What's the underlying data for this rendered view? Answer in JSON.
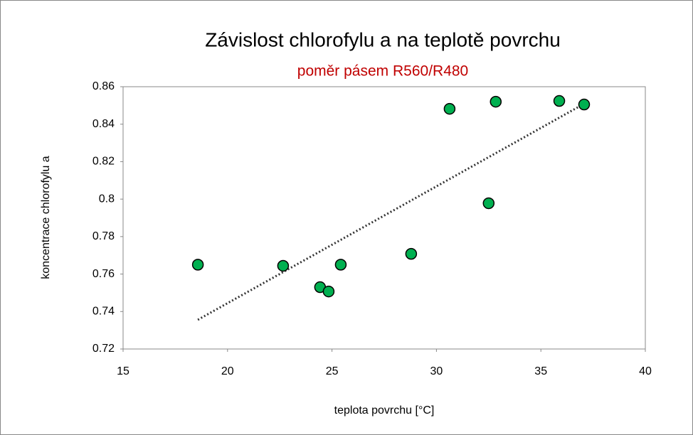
{
  "chart_data": {
    "type": "scatter",
    "title": "Závislost chlorofylu a na teplotě povrchu",
    "subtitle": "poměr pásem R560/R480",
    "subtitle_color": "#c00000",
    "x_label": "teplota povrchu [°C]",
    "y_label": "koncentrace chlorofylu a",
    "x": [
      18.58,
      22.66,
      24.43,
      24.84,
      25.42,
      28.79,
      30.63,
      32.5,
      32.84,
      35.88,
      37.07
    ],
    "values": [
      0.765,
      0.7644,
      0.753,
      0.7507,
      0.765,
      0.7708,
      0.8482,
      0.7978,
      0.852,
      0.8524,
      0.8505
    ],
    "color": "#00b050",
    "trendline": {
      "x": [
        18.58,
        37.07
      ],
      "values": [
        0.7356,
        0.8509
      ],
      "color": "#333333"
    },
    "xlim": [
      15,
      40
    ],
    "xticks": [
      15,
      20,
      25,
      30,
      35,
      40
    ],
    "ylim": [
      0.72,
      0.86
    ],
    "yticks": [
      0.72,
      0.74,
      0.76,
      0.78,
      0.8,
      0.82,
      0.84,
      0.86
    ],
    "grid": false
  }
}
